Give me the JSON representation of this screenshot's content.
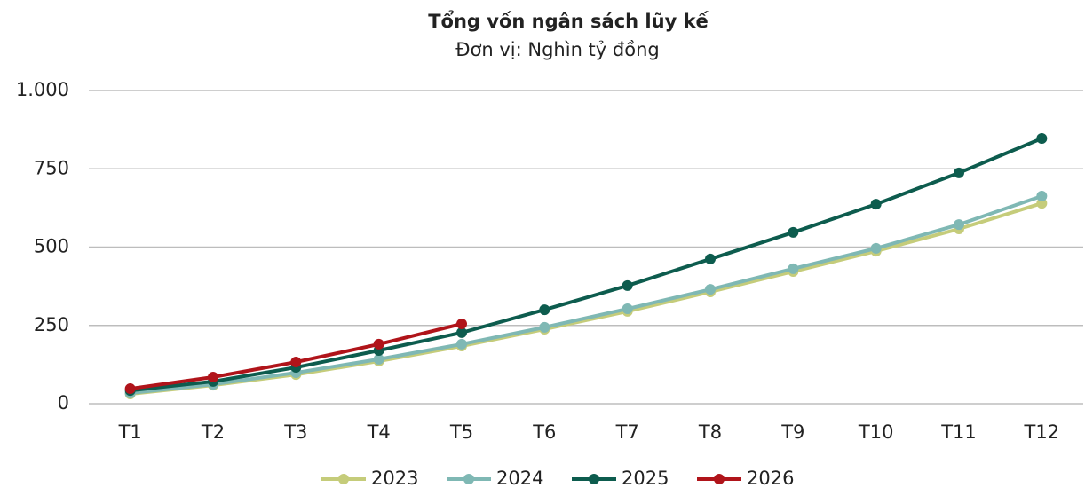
{
  "chart_data": {
    "type": "line",
    "title": "Tổng vốn ngân sách lũy kế",
    "subtitle": "Đơn vị: Nghìn tỷ đồng",
    "categories": [
      "T1",
      "T2",
      "T3",
      "T4",
      "T5",
      "T6",
      "T7",
      "T8",
      "T9",
      "T10",
      "T11",
      "T12"
    ],
    "series": [
      {
        "name": "2023",
        "color": "#c5cc7a",
        "values": [
          31,
          59,
          93,
          136,
          184,
          238,
          295,
          357,
          422,
          487,
          558,
          640
        ]
      },
      {
        "name": "2024",
        "color": "#7fb8b4",
        "values": [
          34,
          62,
          99,
          142,
          190,
          244,
          303,
          365,
          431,
          496,
          572,
          663
        ]
      },
      {
        "name": "2025",
        "color": "#0d5c4e",
        "values": [
          42,
          71,
          116,
          170,
          227,
          300,
          377,
          462,
          547,
          637,
          737,
          847
        ]
      },
      {
        "name": "2026",
        "color": "#b0141a",
        "values": [
          48,
          85,
          133,
          190,
          255,
          null,
          null,
          null,
          null,
          null,
          null,
          null
        ]
      }
    ],
    "ylim": [
      0,
      1000
    ],
    "yticks": [
      0,
      250,
      500,
      750,
      {
        "value": 1000,
        "label": "1.000"
      }
    ],
    "grid": true,
    "legend": "bottom"
  }
}
